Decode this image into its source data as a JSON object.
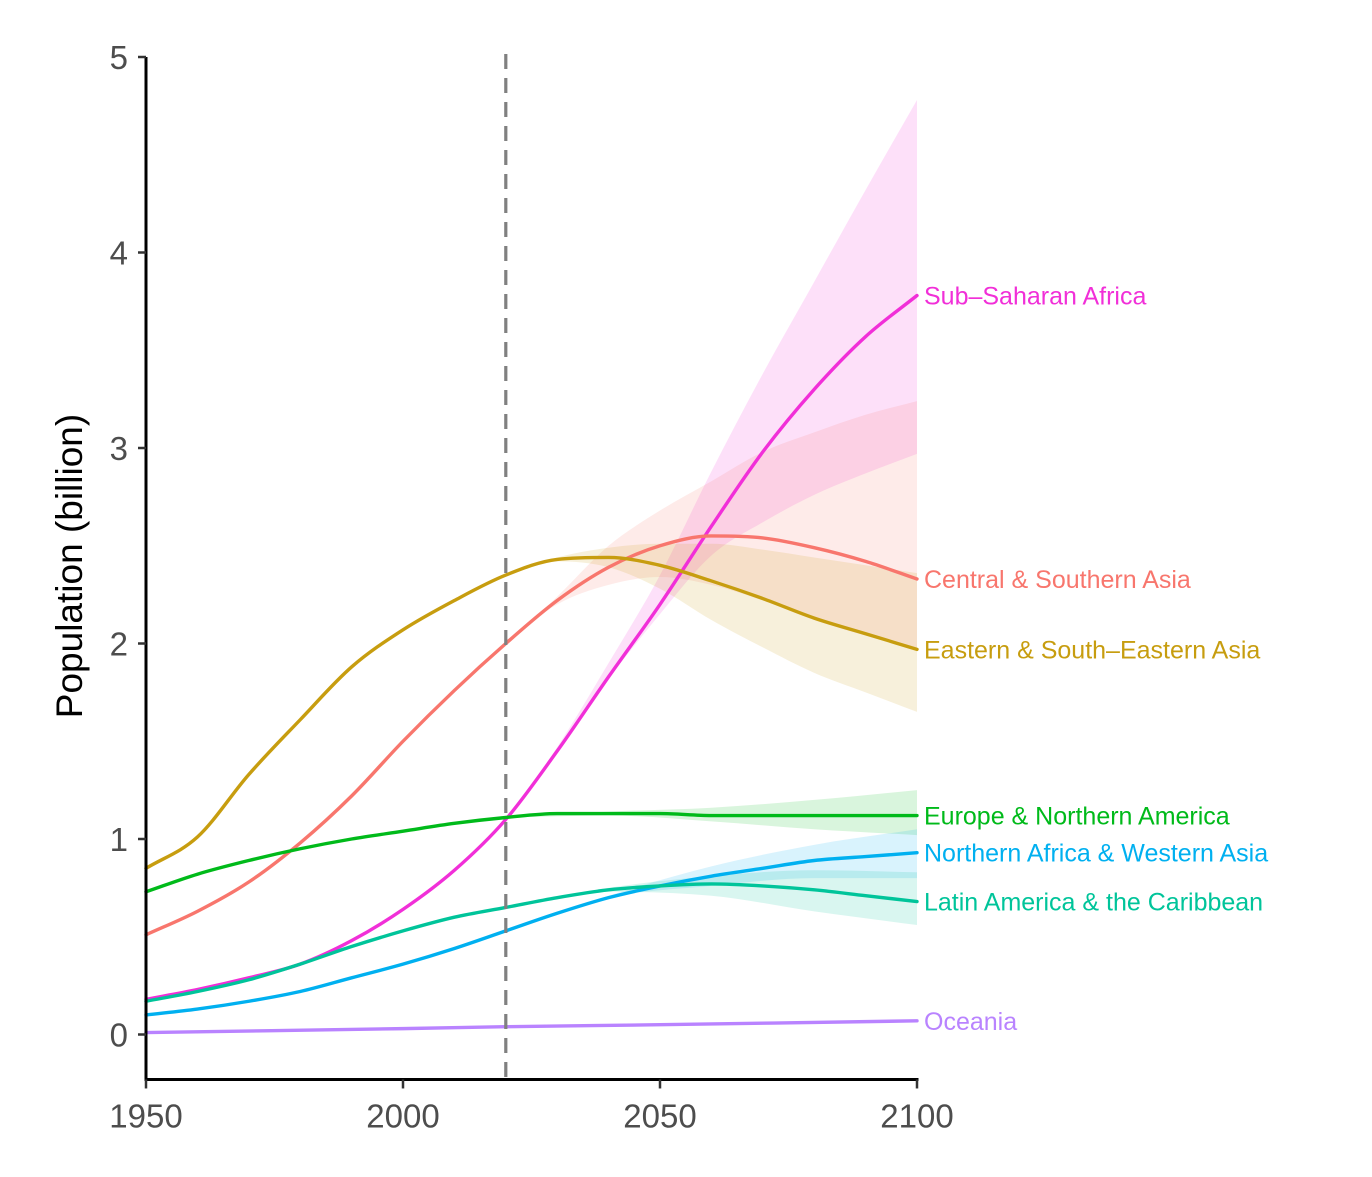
{
  "chart_data": {
    "type": "line",
    "title": "",
    "xlabel": "",
    "ylabel": "Population (billion)",
    "xlim": [
      1950,
      2100
    ],
    "ylim": [
      -0.23,
      5
    ],
    "x_ticks": [
      1950,
      2000,
      2050,
      2100
    ],
    "y_ticks": [
      0,
      1,
      2,
      3,
      4,
      5
    ],
    "grid": false,
    "legend": "direct labels at right end of lines",
    "reference_line": {
      "x": 2020,
      "style": "dashed",
      "color": "#808080"
    },
    "series": [
      {
        "name": "Sub–Saharan Africa",
        "color": "#F12FD8",
        "x": [
          1950,
          1960,
          1970,
          1980,
          1990,
          2000,
          2010,
          2020,
          2030,
          2040,
          2050,
          2060,
          2070,
          2080,
          2090,
          2100
        ],
        "values": [
          0.18,
          0.23,
          0.29,
          0.36,
          0.48,
          0.64,
          0.84,
          1.1,
          1.45,
          1.83,
          2.2,
          2.6,
          2.98,
          3.3,
          3.57,
          3.78
        ],
        "band": {
          "x": [
            2020,
            2030,
            2040,
            2050,
            2060,
            2070,
            2080,
            2090,
            2100
          ],
          "lower": [
            1.1,
            1.45,
            1.82,
            2.15,
            2.45,
            2.62,
            2.76,
            2.87,
            2.97
          ],
          "upper": [
            1.1,
            1.47,
            1.9,
            2.35,
            2.88,
            3.38,
            3.85,
            4.32,
            4.78
          ]
        }
      },
      {
        "name": "Central & Southern Asia",
        "color": "#F8766D",
        "x": [
          1950,
          1960,
          1970,
          1980,
          1990,
          2000,
          2010,
          2020,
          2030,
          2040,
          2050,
          2060,
          2070,
          2080,
          2090,
          2100
        ],
        "values": [
          0.51,
          0.63,
          0.78,
          0.98,
          1.22,
          1.5,
          1.76,
          2.0,
          2.22,
          2.39,
          2.5,
          2.55,
          2.54,
          2.49,
          2.42,
          2.33
        ],
        "band": {
          "x": [
            2020,
            2030,
            2040,
            2050,
            2060,
            2070,
            2080,
            2090,
            2100
          ],
          "lower": [
            2.0,
            2.2,
            2.3,
            2.34,
            2.3,
            2.22,
            2.12,
            2.04,
            1.97
          ],
          "upper": [
            2.0,
            2.24,
            2.5,
            2.68,
            2.83,
            2.98,
            3.08,
            3.17,
            3.24
          ]
        }
      },
      {
        "name": "Eastern & South–Eastern Asia",
        "color": "#C79D0F",
        "x": [
          1950,
          1960,
          1970,
          1980,
          1990,
          2000,
          2010,
          2020,
          2030,
          2040,
          2050,
          2060,
          2070,
          2080,
          2090,
          2100
        ],
        "values": [
          0.85,
          1.01,
          1.33,
          1.61,
          1.88,
          2.07,
          2.22,
          2.35,
          2.43,
          2.44,
          2.4,
          2.32,
          2.23,
          2.13,
          2.05,
          1.97
        ],
        "band": {
          "x": [
            2020,
            2030,
            2040,
            2050,
            2060,
            2070,
            2080,
            2090,
            2100
          ],
          "lower": [
            2.35,
            2.42,
            2.39,
            2.28,
            2.12,
            1.98,
            1.85,
            1.75,
            1.65
          ],
          "upper": [
            2.35,
            2.44,
            2.49,
            2.51,
            2.51,
            2.48,
            2.44,
            2.4,
            2.36
          ]
        }
      },
      {
        "name": "Europe & Northern America",
        "color": "#00BA1A",
        "x": [
          1950,
          1960,
          1970,
          1980,
          1990,
          2000,
          2010,
          2020,
          2030,
          2040,
          2050,
          2060,
          2070,
          2080,
          2090,
          2100
        ],
        "values": [
          0.73,
          0.82,
          0.89,
          0.95,
          1.0,
          1.04,
          1.08,
          1.11,
          1.13,
          1.13,
          1.13,
          1.12,
          1.12,
          1.12,
          1.12,
          1.12
        ],
        "band": {
          "x": [
            2020,
            2040,
            2060,
            2080,
            2100
          ],
          "lower": [
            1.11,
            1.12,
            1.09,
            1.05,
            1.02
          ],
          "upper": [
            1.11,
            1.14,
            1.16,
            1.2,
            1.25
          ]
        }
      },
      {
        "name": "Northern Africa & Western Asia",
        "color": "#00B0F0",
        "x": [
          1950,
          1960,
          1970,
          1980,
          1990,
          2000,
          2010,
          2020,
          2030,
          2040,
          2050,
          2060,
          2070,
          2080,
          2090,
          2100
        ],
        "values": [
          0.1,
          0.13,
          0.17,
          0.22,
          0.29,
          0.36,
          0.44,
          0.53,
          0.62,
          0.7,
          0.76,
          0.81,
          0.85,
          0.89,
          0.91,
          0.93
        ],
        "band": {
          "x": [
            2020,
            2040,
            2060,
            2080,
            2100
          ],
          "lower": [
            0.53,
            0.7,
            0.76,
            0.8,
            0.8
          ],
          "upper": [
            0.53,
            0.71,
            0.86,
            0.97,
            1.05
          ]
        }
      },
      {
        "name": "Latin America & the Caribbean",
        "color": "#00C49A",
        "x": [
          1950,
          1960,
          1970,
          1980,
          1990,
          2000,
          2010,
          2020,
          2030,
          2040,
          2050,
          2060,
          2070,
          2080,
          2090,
          2100
        ],
        "values": [
          0.17,
          0.22,
          0.28,
          0.36,
          0.45,
          0.53,
          0.6,
          0.65,
          0.7,
          0.74,
          0.76,
          0.77,
          0.76,
          0.74,
          0.71,
          0.68
        ],
        "band": {
          "x": [
            2020,
            2040,
            2060,
            2080,
            2100
          ],
          "lower": [
            0.65,
            0.73,
            0.71,
            0.63,
            0.56
          ],
          "upper": [
            0.65,
            0.75,
            0.81,
            0.84,
            0.83
          ]
        }
      },
      {
        "name": "Oceania",
        "color": "#B983FF",
        "x": [
          1950,
          2000,
          2020,
          2050,
          2100
        ],
        "values": [
          0.01,
          0.03,
          0.04,
          0.05,
          0.07
        ],
        "band": null
      }
    ]
  }
}
